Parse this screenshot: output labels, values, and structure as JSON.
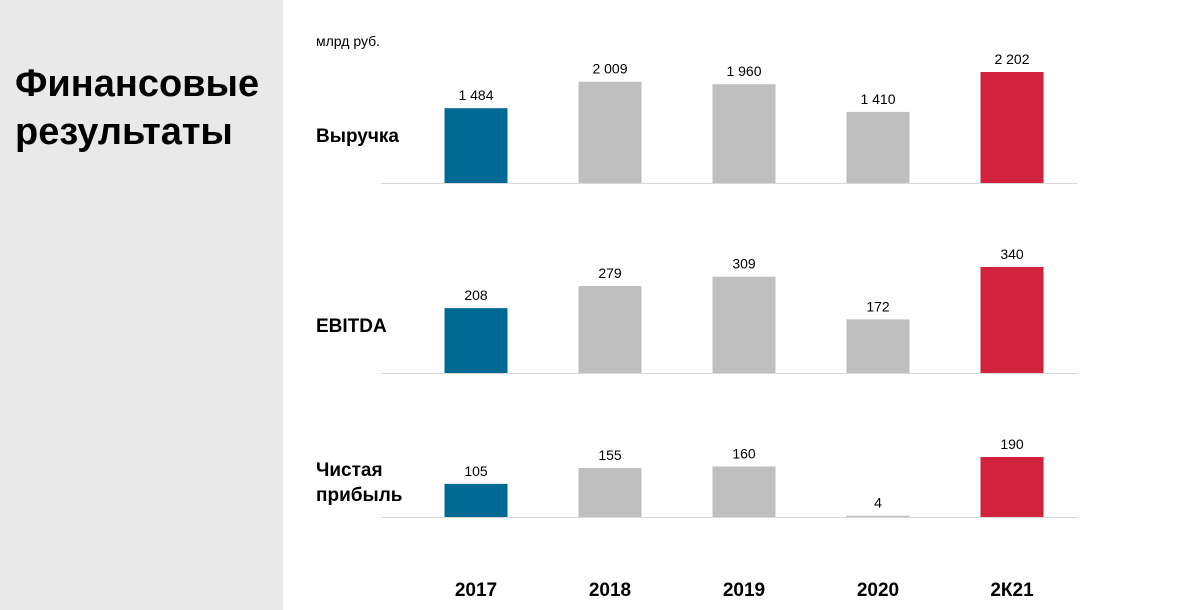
{
  "page": {
    "title": "Финансовые\nрезультаты",
    "unit": "млрд руб."
  },
  "colors": {
    "highlight_first": "#006994",
    "neutral": "#bfbfbf",
    "highlight_last": "#d2233c",
    "baseline": "#d9d9d9",
    "left_panel": "#e9e9e9"
  },
  "chart_data": [
    {
      "type": "bar",
      "title": "Выручка",
      "categories": [
        "2017",
        "2018",
        "2019",
        "2020",
        "2К21"
      ],
      "values": [
        1484,
        2009,
        1960,
        1410,
        2202
      ],
      "value_labels": [
        "1 484",
        "2 009",
        "1 960",
        "1 410",
        "2 202"
      ],
      "ylim": [
        0,
        2202
      ]
    },
    {
      "type": "bar",
      "title": "EBITDA",
      "categories": [
        "2017",
        "2018",
        "2019",
        "2020",
        "2К21"
      ],
      "values": [
        208,
        279,
        309,
        172,
        340
      ],
      "value_labels": [
        "208",
        "279",
        "309",
        "172",
        "340"
      ],
      "ylim": [
        0,
        340
      ]
    },
    {
      "type": "bar",
      "title": "Чистая\nприбыль",
      "categories": [
        "2017",
        "2018",
        "2019",
        "2020",
        "2К21"
      ],
      "values": [
        105,
        155,
        160,
        4,
        190
      ],
      "value_labels": [
        "105",
        "155",
        "160",
        "4",
        "190"
      ],
      "ylim": [
        0,
        190
      ]
    }
  ]
}
